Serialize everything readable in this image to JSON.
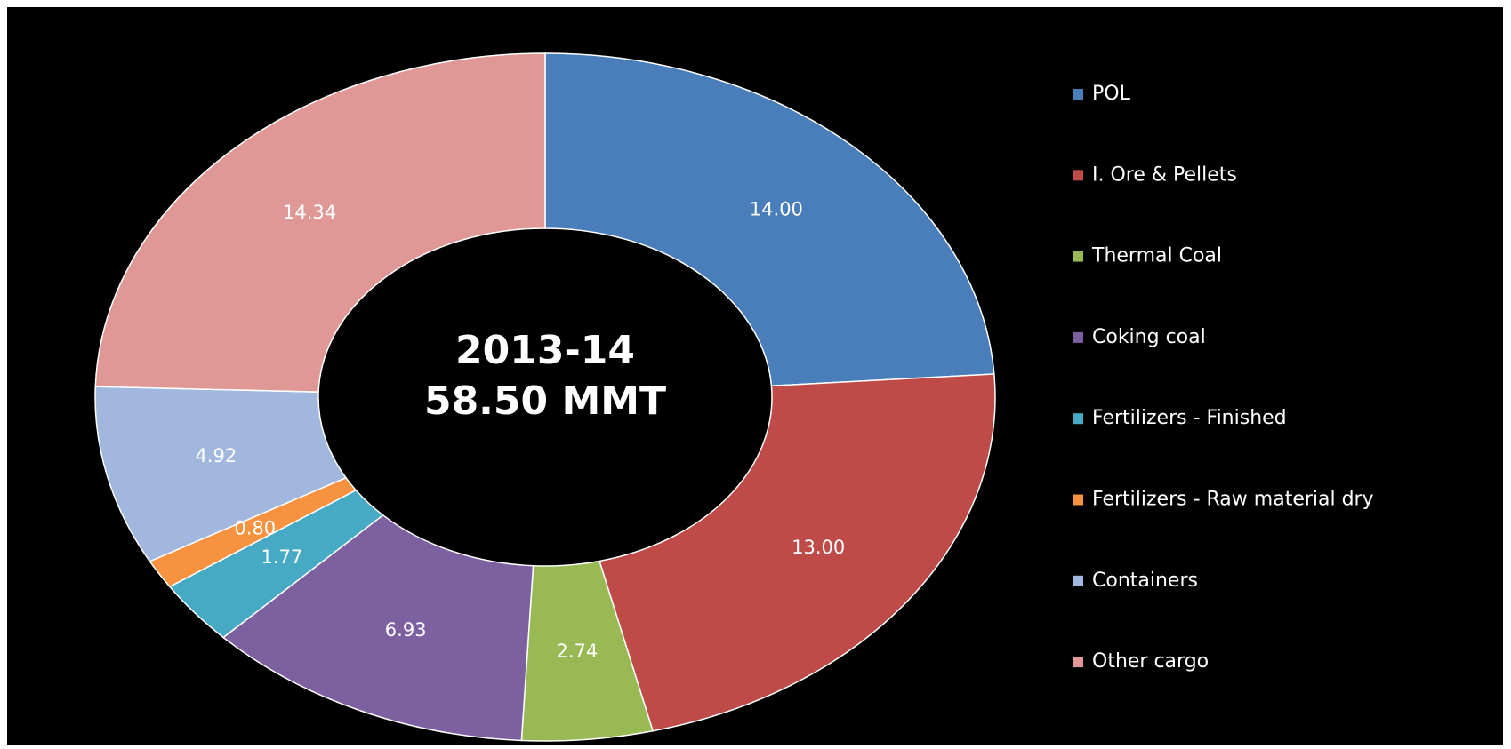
{
  "chart_data": {
    "type": "donut",
    "center_text": [
      "2013-14",
      "58.50 MMT"
    ],
    "categories": [
      "POL",
      "I. Ore & Pellets",
      "Thermal Coal",
      "Coking coal",
      "Fertilizers - Finished",
      "Fertilizers - Raw material dry",
      "Containers",
      "Other cargo"
    ],
    "values": [
      14.0,
      13.0,
      2.74,
      6.93,
      1.77,
      0.8,
      4.92,
      14.34
    ],
    "value_labels": [
      "14.00",
      "13.00",
      "2.74",
      "6.93",
      "1.77",
      "0.80",
      "4.92",
      "14.34"
    ],
    "colors": [
      "#4a7ebb",
      "#be4b48",
      "#98b954",
      "#7d60a0",
      "#46aac5",
      "#f69240",
      "#a2b7de",
      "#e09896"
    ],
    "legend": "right"
  }
}
